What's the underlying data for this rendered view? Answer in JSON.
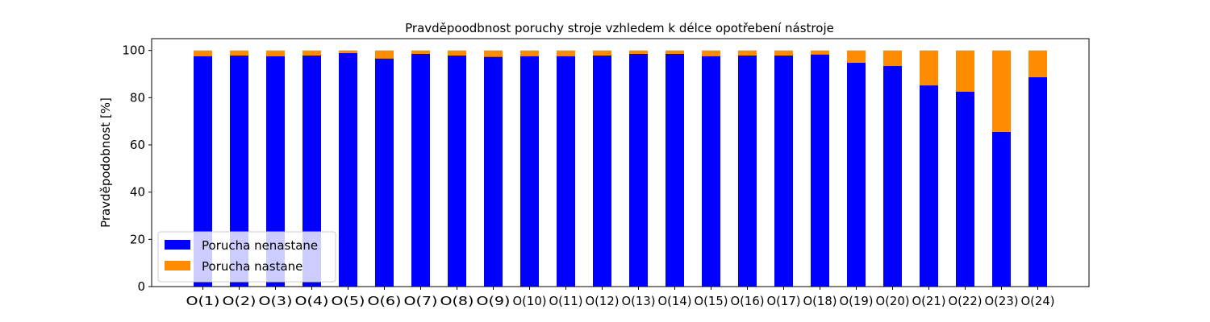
{
  "chart_data": {
    "type": "bar",
    "stacked": true,
    "title": "Pravděpoodbnost poruchy stroje vzhledem k délce opotřebení nástroje",
    "xlabel": "",
    "ylabel": "Pravděpodobnost [%]",
    "ylim": [
      0,
      105
    ],
    "yticks": [
      0,
      20,
      40,
      60,
      80,
      100
    ],
    "grid": false,
    "legend_position": "lower-left",
    "categories": [
      "O(1)",
      "O(2)",
      "O(3)",
      "O(4)",
      "O(5)",
      "O(6)",
      "O(7)",
      "O(8)",
      "O(9)",
      "O(10)",
      "O(11)",
      "O(12)",
      "O(13)",
      "O(14)",
      "O(15)",
      "O(16)",
      "O(17)",
      "O(18)",
      "O(19)",
      "O(20)",
      "O(21)",
      "O(22)",
      "O(23)",
      "O(24)"
    ],
    "series": [
      {
        "name": "Porucha nenastane",
        "color": "#0000ff",
        "values": [
          97.6,
          97.9,
          97.6,
          97.9,
          98.9,
          96.6,
          98.6,
          97.9,
          97.3,
          97.6,
          97.6,
          97.9,
          98.6,
          98.6,
          97.6,
          97.9,
          97.9,
          98.3,
          94.8,
          93.4,
          85.2,
          82.5,
          65.5,
          88.7
        ]
      },
      {
        "name": "Porucha nastane",
        "color": "#ff8c00",
        "values": [
          2.4,
          2.1,
          2.4,
          2.1,
          1.1,
          3.4,
          1.4,
          2.1,
          2.7,
          2.4,
          2.4,
          2.1,
          1.4,
          1.4,
          2.4,
          2.1,
          2.1,
          1.7,
          5.2,
          6.6,
          14.8,
          17.5,
          34.5,
          11.3
        ]
      }
    ]
  }
}
